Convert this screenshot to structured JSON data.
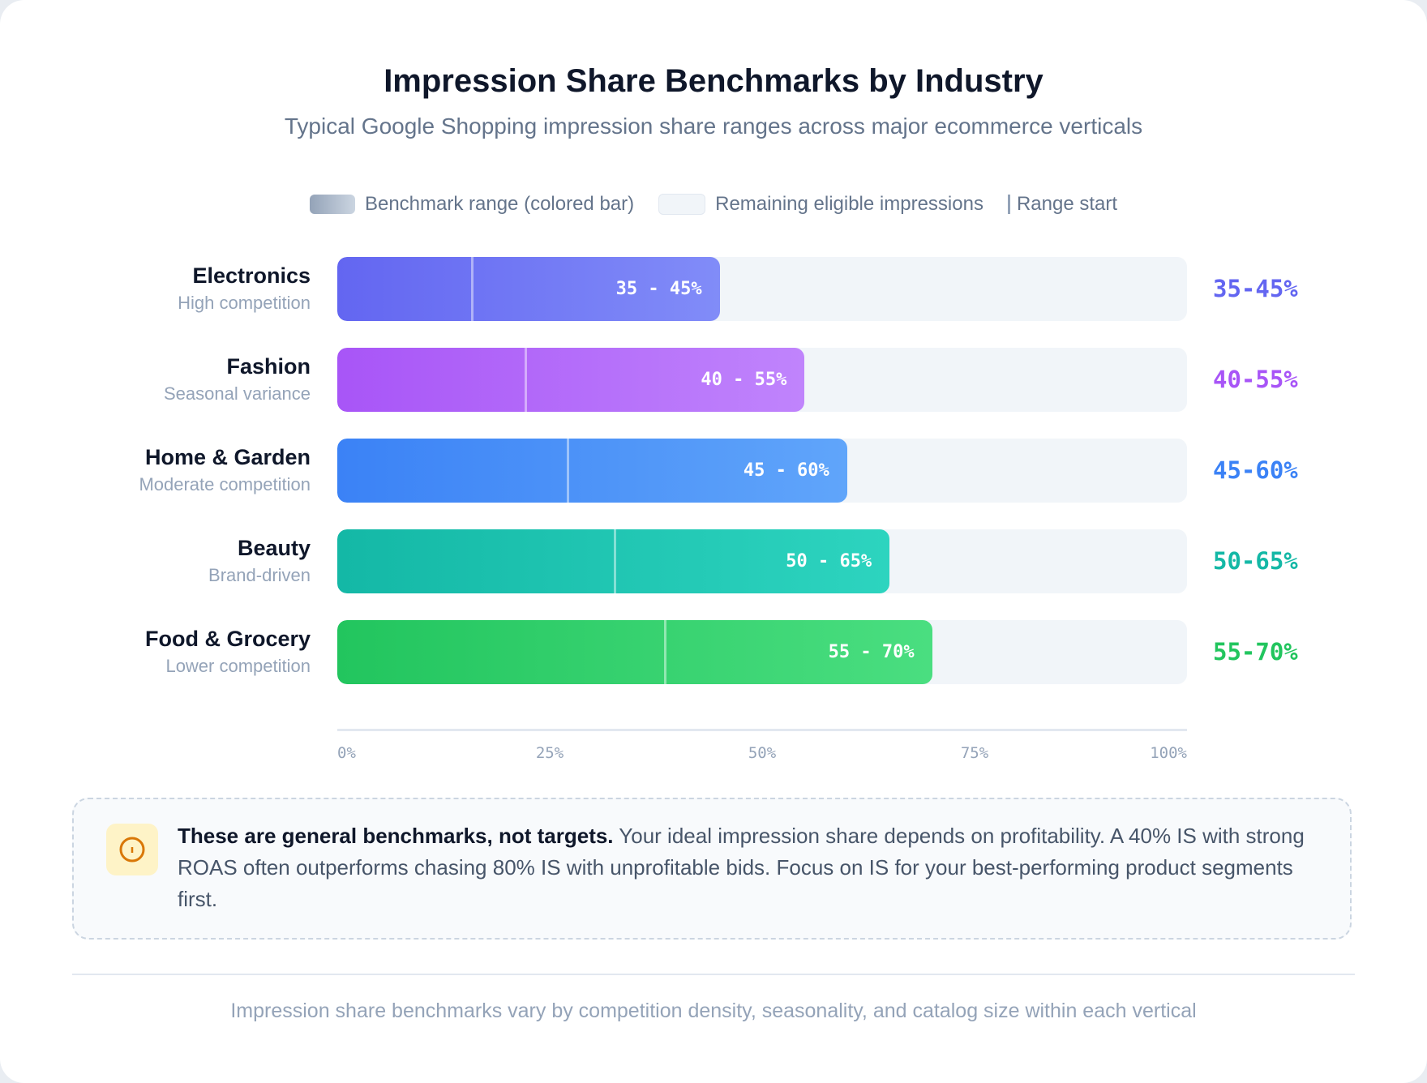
{
  "header": {
    "title": "Impression Share Benchmarks by Industry",
    "subtitle": "Typical Google Shopping impression share ranges across major ecommerce verticals"
  },
  "legend": {
    "range": "Benchmark range (colored bar)",
    "remaining": "Remaining eligible impressions",
    "start": "Range start"
  },
  "chart_data": {
    "type": "bar",
    "orientation": "horizontal",
    "xlim": [
      0,
      100
    ],
    "x_ticks": [
      "0%",
      "25%",
      "50%",
      "75%",
      "100%"
    ],
    "grid": false,
    "legend_position": "top",
    "categories": [
      {
        "name": "Electronics",
        "note": "High competition",
        "low": 35,
        "high": 45,
        "bar_label": "35 - 45%",
        "label": "35-45%",
        "color_from": "#6366f1",
        "color_to": "#818cf8"
      },
      {
        "name": "Fashion",
        "note": "Seasonal variance",
        "low": 40,
        "high": 55,
        "bar_label": "40 - 55%",
        "label": "40-55%",
        "color_from": "#a855f7",
        "color_to": "#c084fc"
      },
      {
        "name": "Home & Garden",
        "note": "Moderate competition",
        "low": 45,
        "high": 60,
        "bar_label": "45 - 60%",
        "label": "45-60%",
        "color_from": "#3b82f6",
        "color_to": "#60a5fa"
      },
      {
        "name": "Beauty",
        "note": "Brand-driven",
        "low": 50,
        "high": 65,
        "bar_label": "50 - 65%",
        "label": "50-65%",
        "color_from": "#14b8a6",
        "color_to": "#2dd4bf"
      },
      {
        "name": "Food & Grocery",
        "note": "Lower competition",
        "low": 55,
        "high": 70,
        "bar_label": "55 - 70%",
        "label": "55-70%",
        "color_from": "#22c55e",
        "color_to": "#4ade80"
      }
    ]
  },
  "note": {
    "icon": "info-circle-icon",
    "bold": "These are general benchmarks, not targets.",
    "text": " Your ideal impression share depends on profitability. A 40% IS with strong ROAS often outperforms chasing 80% IS with unprofitable bids. Focus on IS for your best-performing product segments first."
  },
  "footer": "Impression share benchmarks vary by competition density, seasonality, and catalog size within each vertical"
}
